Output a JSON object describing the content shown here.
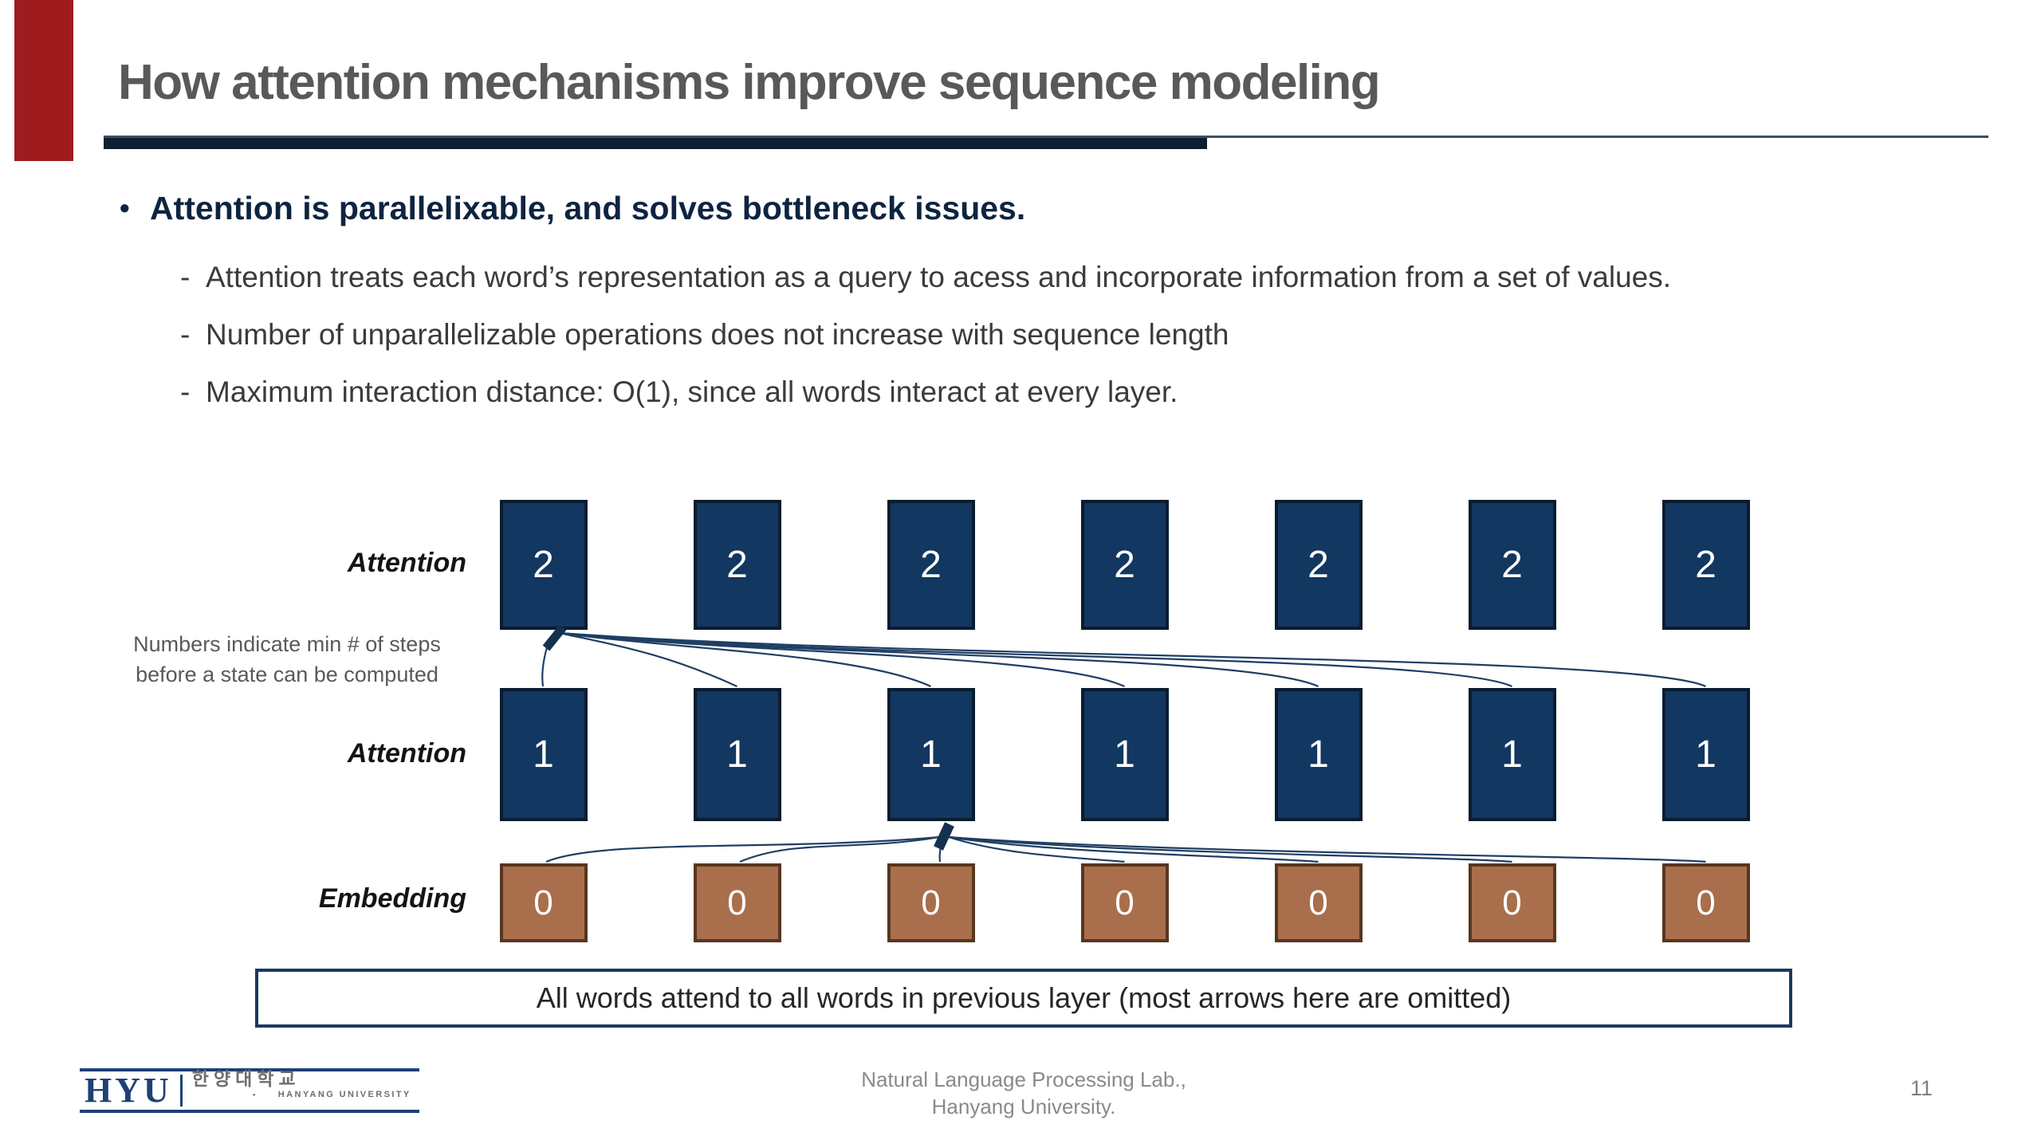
{
  "slide": {
    "title": "How attention mechanisms improve sequence modeling",
    "accent_color": "#9E1B1E"
  },
  "bullets": {
    "main": "Attention is parallelixable, and solves bottleneck issues.",
    "subs": [
      "Attention treats each word’s representation as a query to acess and incorporate information from a set of values.",
      "Number of unparallelizable operations does not increase with sequence length",
      "Maximum interaction distance: O(1), since all words interact at every layer."
    ]
  },
  "diagram": {
    "note_left_line1": "Numbers indicate min # of steps",
    "note_left_line2": "before a state can be computed",
    "columns": 7,
    "rows": [
      {
        "label": "Attention",
        "value": "2",
        "type": "attention"
      },
      {
        "label": "Attention",
        "value": "1",
        "type": "attention"
      },
      {
        "label": "Embedding",
        "value": "0",
        "type": "embedding"
      }
    ],
    "caption": "All words attend to all words in previous layer (most arrows here are omitted)",
    "colors": {
      "attention_box": "#123760",
      "attention_border": "#0A1C30",
      "embedding_box": "#A96F4C",
      "embedding_border": "#583620",
      "arrow": "#1F3E63",
      "arrowhead": "#15314F"
    }
  },
  "footer": {
    "logo_text": "HYU",
    "logo_korean": "한양대학교",
    "logo_sub": "HANYANG UNIVERSITY",
    "affiliation_line1": "Natural Language Processing Lab.,",
    "affiliation_line2": "Hanyang University.",
    "page": "11"
  }
}
